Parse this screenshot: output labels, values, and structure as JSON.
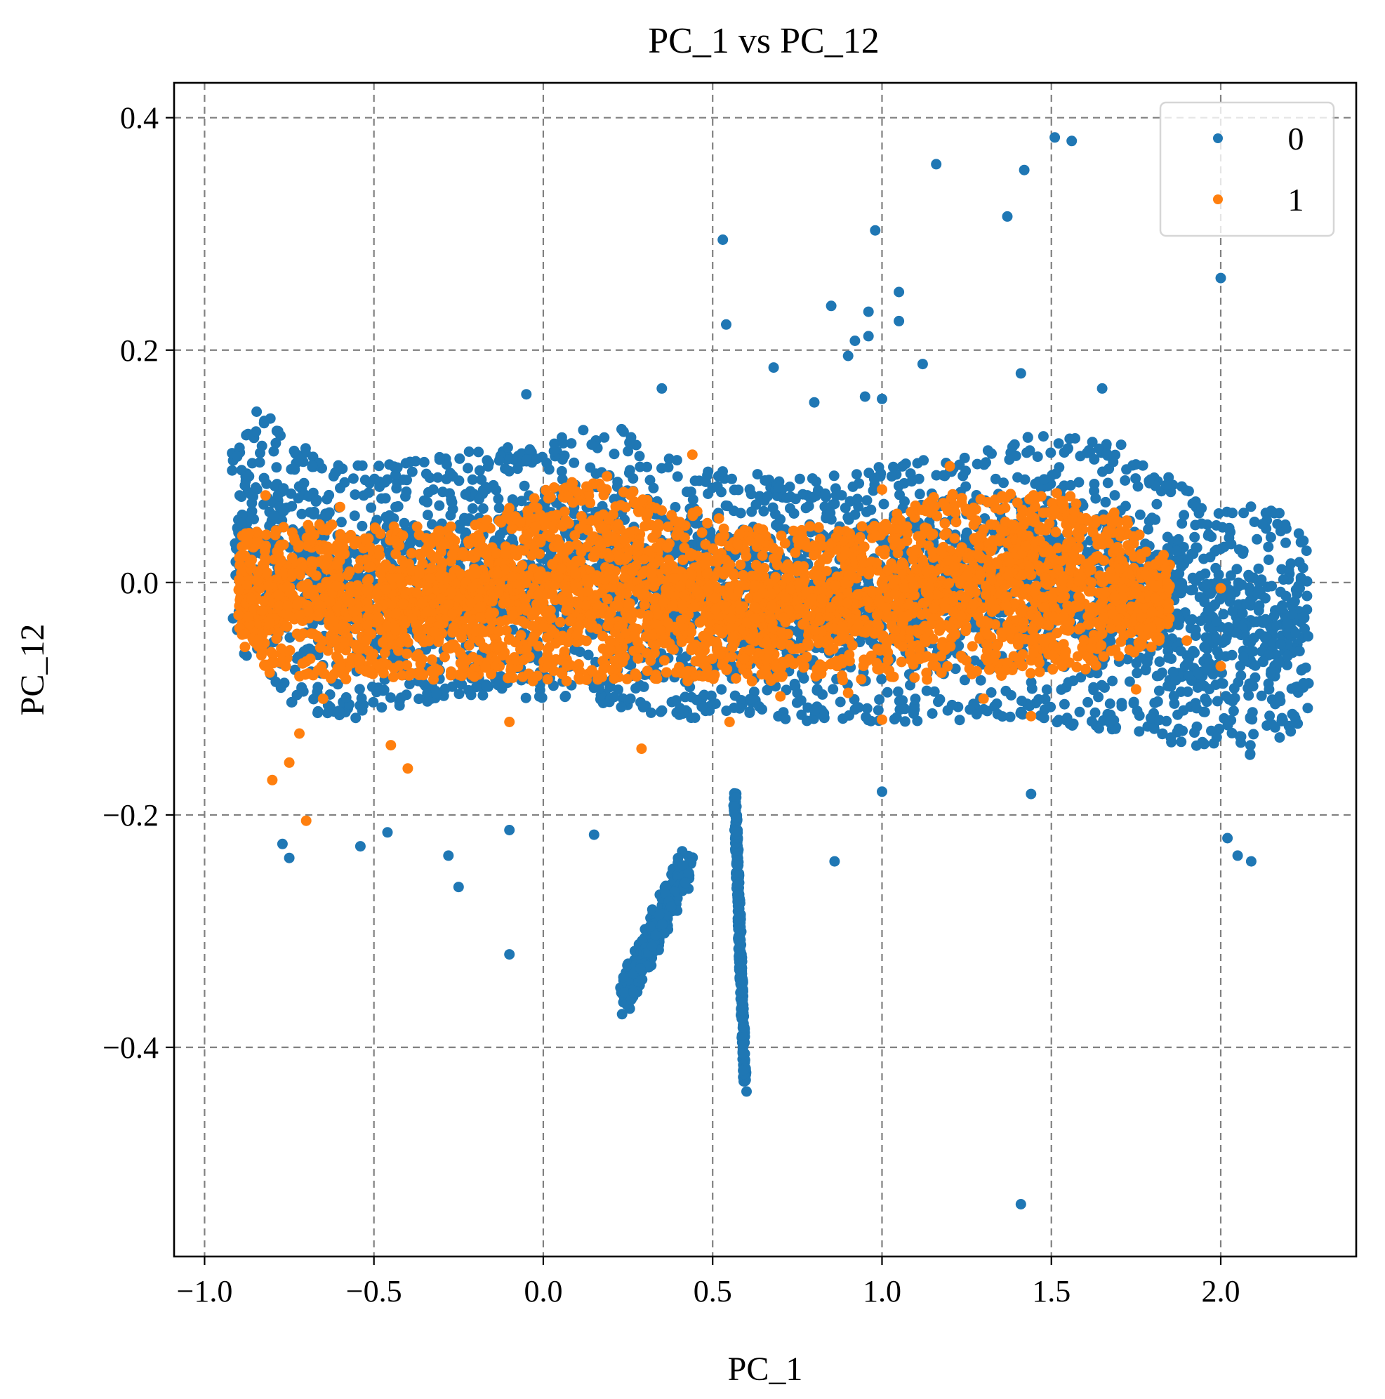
{
  "chart_data": {
    "type": "scatter",
    "title": "PC_1 vs PC_12",
    "xlabel": "PC_1",
    "ylabel": "PC_12",
    "xlim": [
      -1.09,
      2.4
    ],
    "ylim": [
      -0.58,
      0.43
    ],
    "x_ticks": [
      -1.0,
      -0.5,
      0.0,
      0.5,
      1.0,
      1.5,
      2.0
    ],
    "x_tick_labels": [
      "−1.0",
      "−0.5",
      "0.0",
      "0.5",
      "1.0",
      "1.5",
      "2.0"
    ],
    "y_ticks": [
      -0.4,
      -0.2,
      0.0,
      0.2,
      0.4
    ],
    "y_tick_labels": [
      "−0.4",
      "−0.2",
      "0.0",
      "0.2",
      "0.4"
    ],
    "grid": true,
    "legend_position": "top-right",
    "series": [
      {
        "name": "0",
        "color": "#1f77b4",
        "bands": [
          {
            "x_range": [
              -0.92,
              2.26
            ],
            "y_upper": [
              [
                -0.92,
                0.12
              ],
              [
                -0.85,
                0.15
              ],
              [
                -0.7,
                0.12
              ],
              [
                -0.6,
                0.1
              ],
              [
                -0.3,
                0.11
              ],
              [
                0.0,
                0.12
              ],
              [
                0.2,
                0.14
              ],
              [
                0.45,
                0.1
              ],
              [
                0.8,
                0.09
              ],
              [
                1.2,
                0.11
              ],
              [
                1.5,
                0.13
              ],
              [
                1.7,
                0.12
              ],
              [
                1.9,
                0.08
              ],
              [
                2.2,
                0.06
              ]
            ],
            "y_lower": [
              [
                -0.92,
                -0.05
              ],
              [
                -0.8,
                -0.1
              ],
              [
                -0.6,
                -0.12
              ],
              [
                -0.3,
                -0.1
              ],
              [
                0.0,
                -0.1
              ],
              [
                0.5,
                -0.12
              ],
              [
                1.0,
                -0.12
              ],
              [
                1.5,
                -0.12
              ],
              [
                1.9,
                -0.14
              ],
              [
                2.1,
                -0.15
              ],
              [
                2.26,
                -0.12
              ]
            ]
          }
        ],
        "streaks": [
          {
            "x_range": [
              0.23,
              0.43
            ],
            "y_range": [
              -0.36,
              -0.24
            ]
          },
          {
            "x_range": [
              0.56,
              0.6
            ],
            "y_range": [
              -0.43,
              -0.18
            ]
          }
        ],
        "outliers": [
          [
            1.51,
            0.383
          ],
          [
            1.56,
            0.38
          ],
          [
            1.16,
            0.36
          ],
          [
            1.42,
            0.355
          ],
          [
            1.37,
            0.315
          ],
          [
            0.98,
            0.303
          ],
          [
            0.53,
            0.295
          ],
          [
            2.0,
            0.262
          ],
          [
            1.05,
            0.25
          ],
          [
            0.85,
            0.238
          ],
          [
            0.96,
            0.233
          ],
          [
            1.05,
            0.225
          ],
          [
            0.54,
            0.222
          ],
          [
            0.96,
            0.212
          ],
          [
            0.92,
            0.208
          ],
          [
            0.9,
            0.195
          ],
          [
            1.12,
            0.188
          ],
          [
            0.68,
            0.185
          ],
          [
            1.41,
            0.18
          ],
          [
            -0.05,
            0.162
          ],
          [
            1.65,
            0.167
          ],
          [
            0.35,
            0.167
          ],
          [
            0.95,
            0.16
          ],
          [
            1.0,
            0.158
          ],
          [
            0.8,
            0.155
          ],
          [
            -0.54,
            -0.227
          ],
          [
            -0.46,
            -0.215
          ],
          [
            -0.28,
            -0.235
          ],
          [
            -0.25,
            -0.262
          ],
          [
            -0.1,
            -0.213
          ],
          [
            0.15,
            -0.217
          ],
          [
            0.86,
            -0.24
          ],
          [
            2.02,
            -0.22
          ],
          [
            2.09,
            -0.24
          ],
          [
            -0.1,
            -0.32
          ],
          [
            1.41,
            -0.535
          ],
          [
            0.6,
            -0.438
          ],
          [
            0.59,
            -0.42
          ],
          [
            -0.75,
            -0.237
          ],
          [
            -0.77,
            -0.225
          ],
          [
            1.0,
            -0.18
          ],
          [
            1.44,
            -0.182
          ],
          [
            2.05,
            -0.235
          ]
        ]
      },
      {
        "name": "1",
        "color": "#ff7f0e",
        "bands": [
          {
            "x_range": [
              -0.9,
              1.85
            ],
            "y_upper": [
              [
                -0.9,
                0.04
              ],
              [
                -0.8,
                0.05
              ],
              [
                -0.5,
                0.05
              ],
              [
                -0.2,
                0.05
              ],
              [
                0.0,
                0.08
              ],
              [
                0.15,
                0.1
              ],
              [
                0.35,
                0.07
              ],
              [
                0.6,
                0.05
              ],
              [
                0.9,
                0.05
              ],
              [
                1.2,
                0.08
              ],
              [
                1.5,
                0.08
              ],
              [
                1.7,
                0.06
              ],
              [
                1.85,
                0.02
              ]
            ],
            "y_lower": [
              [
                -0.9,
                -0.05
              ],
              [
                -0.8,
                -0.08
              ],
              [
                -0.5,
                -0.085
              ],
              [
                -0.2,
                -0.085
              ],
              [
                0.0,
                -0.085
              ],
              [
                0.5,
                -0.085
              ],
              [
                1.0,
                -0.085
              ],
              [
                1.5,
                -0.08
              ],
              [
                1.7,
                -0.07
              ],
              [
                1.85,
                -0.05
              ]
            ]
          }
        ],
        "outliers": [
          [
            -0.8,
            -0.17
          ],
          [
            -0.7,
            -0.205
          ],
          [
            -0.75,
            -0.155
          ],
          [
            -0.72,
            -0.13
          ],
          [
            -0.65,
            -0.1
          ],
          [
            -0.45,
            -0.14
          ],
          [
            -0.4,
            -0.16
          ],
          [
            -0.1,
            -0.12
          ],
          [
            0.29,
            -0.143
          ],
          [
            0.55,
            -0.12
          ],
          [
            1.0,
            -0.118
          ],
          [
            1.44,
            -0.115
          ],
          [
            2.0,
            -0.072
          ],
          [
            2.0,
            -0.005
          ],
          [
            1.9,
            -0.05
          ],
          [
            1.75,
            -0.092
          ],
          [
            1.3,
            -0.1
          ],
          [
            0.9,
            -0.095
          ],
          [
            0.7,
            -0.098
          ],
          [
            -0.6,
            0.065
          ],
          [
            -0.82,
            0.075
          ],
          [
            0.44,
            0.11
          ],
          [
            1.0,
            0.08
          ],
          [
            1.2,
            0.1
          ]
        ]
      }
    ]
  }
}
